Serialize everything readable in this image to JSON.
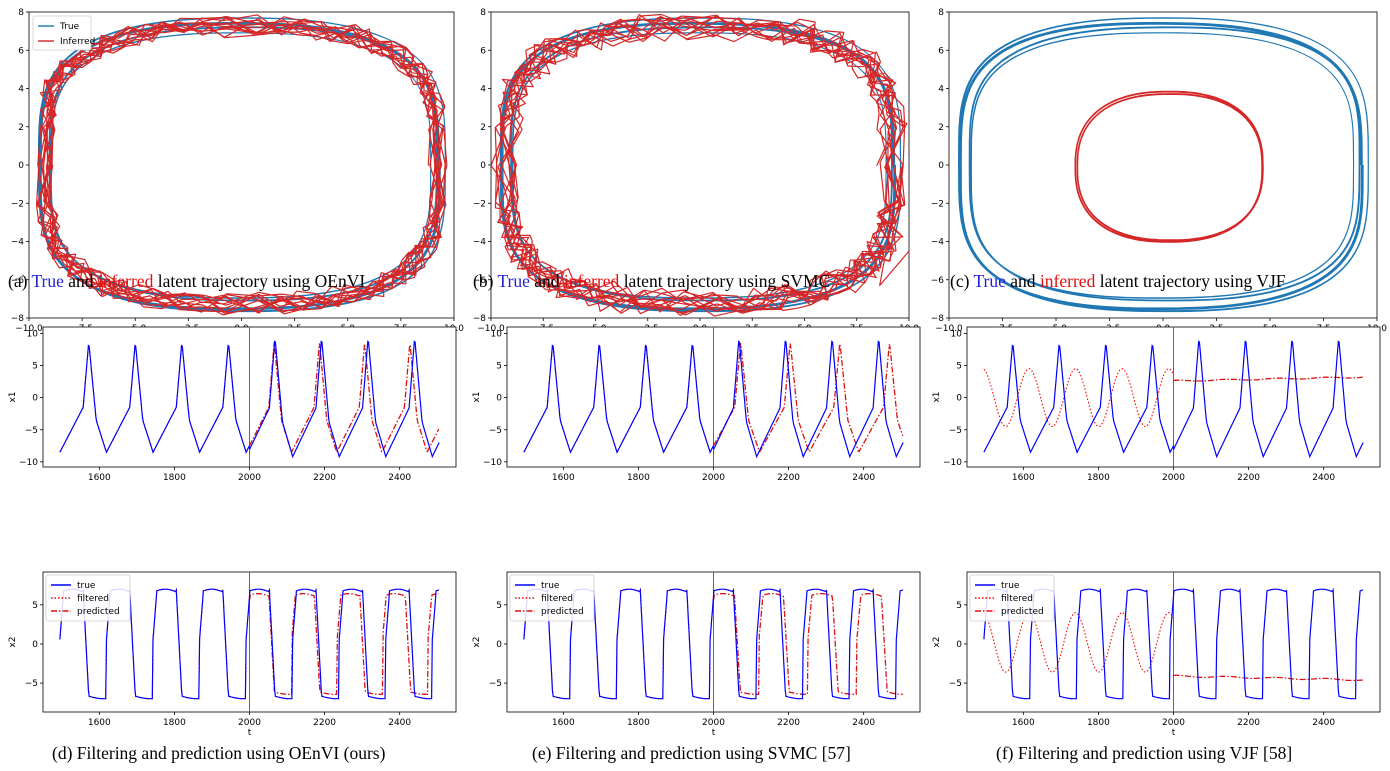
{
  "colors": {
    "true_traj": "#1f77b4",
    "inferred_traj": "#d62728",
    "true_ts": "#0000ff",
    "filt_ts": "#ff0000",
    "pred_ts": "#dd1111"
  },
  "captions": {
    "a": {
      "prefix": "(a) ",
      "w1": "True",
      "and": " and ",
      "w2": "inferred",
      "suffix": " latent trajectory using OEnVI"
    },
    "b": {
      "prefix": "(b) ",
      "w1": "True",
      "and": " and ",
      "w2": "inferred",
      "suffix": " latent trajectory using SVMC"
    },
    "c": {
      "prefix": "(c) ",
      "w1": "True",
      "and": " and ",
      "w2": "inferred",
      "suffix": " latent trajectory using VJF"
    },
    "d": "(d) Filtering and prediction using OEnVI (ours)",
    "e": "(e) Filtering and prediction using SVMC [57]",
    "f": "(f) Filtering and prediction using VJF [58]"
  },
  "chart_data": [
    {
      "id": "a",
      "type": "line",
      "method": "OEnVI",
      "xlim": [
        -10.0,
        10.0
      ],
      "ylim": [
        -8,
        8
      ],
      "xticks": [
        "−10.0",
        "−7.5",
        "−5.0",
        "−2.5",
        "0.0",
        "2.5",
        "5.0",
        "7.5",
        "10.0"
      ],
      "yticks": [
        "−8",
        "−6",
        "−4",
        "−2",
        "0",
        "2",
        "4",
        "6",
        "8"
      ],
      "legend": [
        "True",
        "Inferred"
      ],
      "legend_loc": "upper-left",
      "true_orbit": {
        "ax": [
          8.9,
          9.6
        ],
        "ay": [
          6.9,
          7.7
        ],
        "loops": 10
      },
      "inferred_orbit": {
        "ax": [
          8.8,
          9.7
        ],
        "ay": [
          6.7,
          7.8
        ],
        "loops": 12
      }
    },
    {
      "id": "b",
      "type": "line",
      "method": "SVMC",
      "xlim": [
        -10.0,
        10.0
      ],
      "ylim": [
        -8,
        8
      ],
      "xticks": [
        "−10.0",
        "−7.5",
        "−5.0",
        "−2.5",
        "0.0",
        "2.5",
        "5.0",
        "7.5",
        "10.0"
      ],
      "yticks": [
        "−8",
        "−6",
        "−4",
        "−2",
        "0",
        "2",
        "4",
        "6",
        "8"
      ],
      "true_orbit": {
        "ax": [
          8.9,
          9.6
        ],
        "ay": [
          6.9,
          7.7
        ],
        "loops": 10
      },
      "inferred_orbit": {
        "ax": [
          8.6,
          9.9
        ],
        "ay": [
          6.5,
          7.9
        ],
        "loops": 12
      }
    },
    {
      "id": "c",
      "type": "line",
      "method": "VJF",
      "xlim": [
        -10.0,
        10.0
      ],
      "ylim": [
        -8,
        8
      ],
      "xticks": [
        "−10.0",
        "−7.5",
        "−5.0",
        "−2.5",
        "0.0",
        "2.5",
        "5.0",
        "7.5",
        "10.0"
      ],
      "yticks": [
        "−8",
        "−6",
        "−4",
        "−2",
        "0",
        "2",
        "4",
        "6",
        "8"
      ],
      "true_orbit": {
        "ax": [
          8.9,
          9.6
        ],
        "ay": [
          6.9,
          7.7
        ],
        "loops": 10
      },
      "inferred_orbit": {
        "center": [
          0.3,
          -0.1
        ],
        "ax": [
          4.3,
          4.4
        ],
        "ay": [
          3.8,
          3.95
        ],
        "loops": 8
      }
    },
    {
      "id": "d",
      "type": "line",
      "method": "OEnVI",
      "xlim": [
        1450,
        2550
      ],
      "split": 2000,
      "xlabel": "t",
      "legend": [
        "true",
        "filtered",
        "predicted"
      ],
      "legend_loc": "upper-left",
      "x1": {
        "ylabel": "x1",
        "ylim": [
          -10.8,
          11
        ],
        "yticks": [
          "−10",
          "−5",
          "0",
          "5",
          "10"
        ],
        "peaks_true": [
          8.5,
          8.7,
          8.9,
          8.7,
          9.3,
          9.6,
          9.8,
          9.7,
          9.9
        ],
        "pred_lag": 0.12
      },
      "x2": {
        "ylabel": "x2",
        "ylim": [
          -8.7,
          9.2
        ],
        "yticks": [
          "−5",
          "0",
          "5"
        ],
        "pred_lag": 0.1
      },
      "xticks": [
        "1600",
        "1800",
        "2000",
        "2200",
        "2400"
      ]
    },
    {
      "id": "e",
      "type": "line",
      "method": "SVMC",
      "xlim": [
        1450,
        2550
      ],
      "split": 2000,
      "xlabel": "t",
      "legend": [
        "true",
        "filtered",
        "predicted"
      ],
      "legend_loc": "upper-left",
      "x1": {
        "ylabel": "x1",
        "ylim": [
          -10.8,
          11
        ],
        "yticks": [
          "−10",
          "−5",
          "0",
          "5",
          "10"
        ],
        "pred_lag": -0.25
      },
      "x2": {
        "ylabel": "x2",
        "ylim": [
          -8.7,
          9.2
        ],
        "yticks": [
          "−5",
          "0",
          "5"
        ],
        "pred_lag": -0.2
      },
      "xticks": [
        "1600",
        "1800",
        "2000",
        "2200",
        "2400"
      ]
    },
    {
      "id": "f",
      "type": "line",
      "method": "VJF",
      "xlim": [
        1450,
        2550
      ],
      "split": 2000,
      "xlabel": "t",
      "legend": [
        "true",
        "filtered",
        "predicted"
      ],
      "legend_loc": "upper-left",
      "x1": {
        "ylabel": "x1",
        "ylim": [
          -10.8,
          11
        ],
        "yticks": [
          "−10",
          "−5",
          "0",
          "5",
          "10"
        ],
        "filtered_amp": 4.5,
        "predicted_level": [
          2.6,
          3.2
        ]
      },
      "x2": {
        "ylabel": "x2",
        "ylim": [
          -8.7,
          9.2
        ],
        "yticks": [
          "−5",
          "0",
          "5"
        ],
        "filtered_amp": 3.8,
        "predicted_level": [
          -4.1,
          -4.6
        ]
      },
      "xticks": [
        "1600",
        "1800",
        "2000",
        "2200",
        "2400"
      ]
    }
  ]
}
